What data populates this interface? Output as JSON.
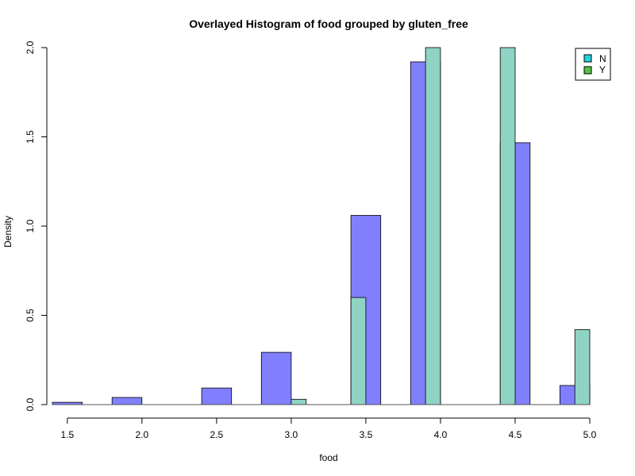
{
  "chart_data": {
    "type": "bar",
    "title": "Overlayed Histogram of food grouped by gluten_free",
    "xlabel": "food",
    "ylabel": "Density",
    "xlim": [
      1.4,
      5.0
    ],
    "ylim": [
      0,
      2.0
    ],
    "x_ticks": [
      "1.5",
      "2.0",
      "2.5",
      "3.0",
      "3.5",
      "4.0",
      "4.5",
      "5.0"
    ],
    "y_ticks": [
      "0.0",
      "0.5",
      "1.0",
      "1.5",
      "2.0"
    ],
    "series": [
      {
        "name": "N",
        "color": "#8080ff",
        "bins": [
          {
            "x0": 1.4,
            "x1": 1.6,
            "density": 0.013
          },
          {
            "x0": 1.8,
            "x1": 2.0,
            "density": 0.04
          },
          {
            "x0": 2.4,
            "x1": 2.6,
            "density": 0.093
          },
          {
            "x0": 2.8,
            "x1": 3.0,
            "density": 0.293
          },
          {
            "x0": 3.4,
            "x1": 3.6,
            "density": 1.06
          },
          {
            "x0": 3.8,
            "x1": 4.0,
            "density": 1.92
          },
          {
            "x0": 4.4,
            "x1": 4.6,
            "density": 1.467
          },
          {
            "x0": 4.8,
            "x1": 5.0,
            "density": 0.107
          }
        ]
      },
      {
        "name": "Y",
        "color": "#8fd3c5",
        "bins": [
          {
            "x0": 3.0,
            "x1": 3.1,
            "density": 0.03
          },
          {
            "x0": 3.4,
            "x1": 3.5,
            "density": 0.6
          },
          {
            "x0": 3.9,
            "x1": 4.0,
            "density": 2.0
          },
          {
            "x0": 4.4,
            "x1": 4.5,
            "density": 2.0
          },
          {
            "x0": 4.9,
            "x1": 5.0,
            "density": 0.42
          }
        ]
      }
    ],
    "legend": {
      "position": "top-right",
      "items": [
        {
          "label": "N",
          "color": "#20d4d8"
        },
        {
          "label": "Y",
          "color": "#55c24a"
        }
      ]
    }
  }
}
